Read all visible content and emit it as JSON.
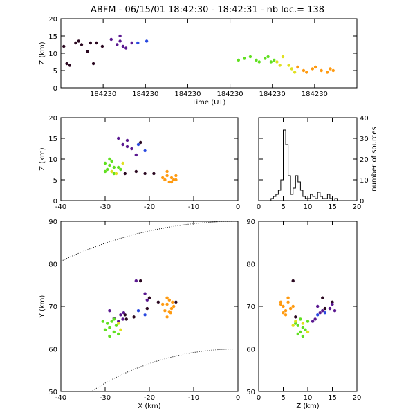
{
  "title": "ABFM - 06/15/01 18:42:30 - 18:42:31 - nb loc.=    138",
  "colors": {
    "early": "#2a0820",
    "purple": "#5a1890",
    "blue": "#2848e0",
    "green": "#60e020",
    "yellow": "#e0e020",
    "orange": "#ff9a10"
  },
  "chart_data": [
    {
      "id": "time_height",
      "type": "scatter",
      "xlabel": "Time (UT)",
      "ylabel": "Z (km)",
      "x_ticklabels": [
        "184230",
        "184230",
        "184230",
        "184230",
        "184230",
        "184230"
      ],
      "ylim": [
        0,
        20
      ],
      "y_ticks": [
        0,
        5,
        10,
        15,
        20
      ],
      "xlim": [
        0,
        1
      ],
      "series": [
        {
          "color": "#2a0820",
          "points": [
            [
              0.01,
              12
            ],
            [
              0.02,
              7
            ],
            [
              0.03,
              6.5
            ],
            [
              0.05,
              13
            ],
            [
              0.06,
              13.5
            ],
            [
              0.07,
              12.5
            ],
            [
              0.09,
              10.5
            ],
            [
              0.1,
              13
            ],
            [
              0.11,
              7
            ],
            [
              0.12,
              13
            ],
            [
              0.14,
              12
            ]
          ]
        },
        {
          "color": "#5a1890",
          "points": [
            [
              0.17,
              14
            ],
            [
              0.19,
              12.5
            ],
            [
              0.2,
              15
            ],
            [
              0.21,
              12
            ],
            [
              0.22,
              11.5
            ],
            [
              0.2,
              13.5
            ],
            [
              0.24,
              13
            ]
          ]
        },
        {
          "color": "#2848e0",
          "points": [
            [
              0.26,
              13
            ],
            [
              0.29,
              13.5
            ]
          ]
        },
        {
          "color": "#60e020",
          "points": [
            [
              0.6,
              8
            ],
            [
              0.62,
              8.5
            ],
            [
              0.64,
              9
            ],
            [
              0.66,
              8
            ],
            [
              0.67,
              7.5
            ],
            [
              0.69,
              8.5
            ],
            [
              0.7,
              9
            ],
            [
              0.71,
              7.5
            ],
            [
              0.72,
              8
            ]
          ]
        },
        {
          "color": "#e0e020",
          "points": [
            [
              0.73,
              7.5
            ],
            [
              0.75,
              9
            ],
            [
              0.74,
              6.5
            ],
            [
              0.77,
              6.5
            ],
            [
              0.78,
              5.5
            ],
            [
              0.79,
              4.5
            ]
          ]
        },
        {
          "color": "#ff9a10",
          "points": [
            [
              0.8,
              6
            ],
            [
              0.82,
              5
            ],
            [
              0.83,
              4.5
            ],
            [
              0.85,
              5.5
            ],
            [
              0.86,
              6
            ],
            [
              0.88,
              5
            ],
            [
              0.9,
              4.5
            ],
            [
              0.91,
              5.5
            ],
            [
              0.92,
              5
            ]
          ]
        }
      ]
    },
    {
      "id": "x_z",
      "type": "scatter",
      "xlabel": "",
      "ylabel": "Z (km)",
      "xlim": [
        -40,
        0
      ],
      "ylim": [
        0,
        20
      ],
      "x_ticks": [
        -40,
        -30,
        -20,
        -10,
        0
      ],
      "y_ticks": [
        0,
        5,
        10,
        15,
        20
      ],
      "series": [
        {
          "color": "#2a0820",
          "points": [
            [
              -22,
              14
            ],
            [
              -23,
              7
            ],
            [
              -21,
              6.5
            ],
            [
              -19,
              6.5
            ],
            [
              -25.5,
              6.5
            ]
          ]
        },
        {
          "color": "#5a1890",
          "points": [
            [
              -27,
              15
            ],
            [
              -26,
              13.5
            ],
            [
              -25,
              13
            ],
            [
              -24,
              12.5
            ],
            [
              -23,
              11
            ],
            [
              -25,
              14.5
            ]
          ]
        },
        {
          "color": "#2848e0",
          "points": [
            [
              -22.5,
              13.5
            ],
            [
              -21,
              12
            ]
          ]
        },
        {
          "color": "#60e020",
          "points": [
            [
              -30,
              9
            ],
            [
              -29,
              8.5
            ],
            [
              -28,
              8
            ],
            [
              -29.5,
              7.5
            ],
            [
              -28.5,
              9.5
            ],
            [
              -27,
              8
            ],
            [
              -30,
              7
            ],
            [
              -28,
              6.5
            ],
            [
              -26.5,
              7.5
            ],
            [
              -29,
              10
            ]
          ]
        },
        {
          "color": "#e0e020",
          "points": [
            [
              -28.5,
              7
            ],
            [
              -27.5,
              6.5
            ],
            [
              -26,
              9
            ]
          ]
        },
        {
          "color": "#ff9a10",
          "points": [
            [
              -16,
              6
            ],
            [
              -15,
              5.5
            ],
            [
              -14.5,
              5
            ],
            [
              -16.5,
              5
            ],
            [
              -15.5,
              4.5
            ],
            [
              -14,
              6
            ],
            [
              -16,
              7
            ],
            [
              -15,
              4.5
            ],
            [
              -17,
              5.5
            ],
            [
              -14,
              5
            ]
          ]
        }
      ]
    },
    {
      "id": "z_histogram",
      "type": "bar",
      "xlabel": "",
      "ylabel": "number of sources",
      "xlim": [
        0,
        20
      ],
      "ylim": [
        0,
        40
      ],
      "x_ticks": [
        0,
        5,
        10,
        15,
        20
      ],
      "y_ticks": [
        0,
        10,
        20,
        30,
        40
      ],
      "bin_width": 0.5,
      "bin_starts": [
        2,
        2.5,
        3,
        3.5,
        4,
        4.5,
        5,
        5.5,
        6,
        6.5,
        7,
        7.5,
        8,
        8.5,
        9,
        9.5,
        10,
        10.5,
        11,
        11.5,
        12,
        12.5,
        13,
        13.5,
        14,
        14.5,
        15,
        15.5,
        16
      ],
      "values": [
        0,
        1,
        2,
        3,
        5,
        10,
        34,
        27,
        12,
        3,
        6,
        12,
        9,
        5,
        2,
        1,
        1,
        3,
        2,
        1,
        4,
        2,
        1,
        1,
        3,
        1,
        0,
        1,
        0
      ]
    },
    {
      "id": "x_y",
      "type": "scatter",
      "xlabel": "X (km)",
      "ylabel": "Y (km)",
      "xlim": [
        -40,
        0
      ],
      "ylim": [
        50,
        90
      ],
      "x_ticks": [
        -40,
        -30,
        -20,
        -10,
        0
      ],
      "y_ticks": [
        50,
        60,
        70,
        80,
        90
      ],
      "range_arcs": [
        {
          "center": [
            0,
            0
          ],
          "radius": 90
        },
        {
          "center": [
            0,
            0
          ],
          "radius": 60
        }
      ],
      "series": [
        {
          "color": "#2a0820",
          "points": [
            [
              -22,
              76
            ],
            [
              -20,
              72
            ],
            [
              -18,
              71
            ],
            [
              -20.5,
              69.5
            ],
            [
              -14,
              71
            ],
            [
              -25.5,
              68
            ],
            [
              -25.2,
              67
            ],
            [
              -23.5,
              67.5
            ]
          ]
        },
        {
          "color": "#5a1890",
          "points": [
            [
              -27,
              66.5
            ],
            [
              -26.5,
              68
            ],
            [
              -26,
              67
            ],
            [
              -25.8,
              68.5
            ],
            [
              -29,
              69
            ],
            [
              -28,
              67.2
            ],
            [
              -23,
              76
            ],
            [
              -21,
              73
            ],
            [
              -20.5,
              71.5
            ]
          ]
        },
        {
          "color": "#2848e0",
          "points": [
            [
              -22.5,
              69
            ],
            [
              -21,
              68
            ]
          ]
        },
        {
          "color": "#60e020",
          "points": [
            [
              -29.5,
              66
            ],
            [
              -29,
              65
            ],
            [
              -28,
              64
            ],
            [
              -30,
              64.5
            ],
            [
              -28.5,
              66.5
            ],
            [
              -27,
              63.5
            ],
            [
              -30.5,
              66.5
            ],
            [
              -28,
              67
            ],
            [
              -27.5,
              65.5
            ],
            [
              -29,
              63
            ]
          ]
        },
        {
          "color": "#e0e020",
          "points": [
            [
              -27,
              66
            ],
            [
              -26.5,
              64.5
            ]
          ]
        },
        {
          "color": "#ff9a10",
          "points": [
            [
              -16,
              70.5
            ],
            [
              -15.5,
              71.5
            ],
            [
              -15,
              69.5
            ],
            [
              -16.5,
              69
            ],
            [
              -14.5,
              70
            ],
            [
              -16,
              72
            ],
            [
              -15.2,
              68.5
            ],
            [
              -17,
              70.5
            ],
            [
              -14.8,
              71
            ],
            [
              -16,
              67.5
            ],
            [
              -15.5,
              68.8
            ]
          ]
        }
      ]
    },
    {
      "id": "z_y",
      "type": "scatter",
      "xlabel": "Z (km)",
      "ylabel": "",
      "xlim": [
        0,
        20
      ],
      "ylim": [
        50,
        90
      ],
      "x_ticks": [
        0,
        5,
        10,
        15,
        20
      ],
      "y_ticks": [
        50,
        60,
        70,
        80,
        90
      ],
      "series": [
        {
          "color": "#2a0820",
          "points": [
            [
              7,
              76
            ],
            [
              13,
              72
            ],
            [
              15,
              71
            ],
            [
              7.5,
              67.5
            ],
            [
              13.5,
              69.5
            ]
          ]
        },
        {
          "color": "#5a1890",
          "points": [
            [
              12,
              70
            ],
            [
              13,
              69
            ],
            [
              12.5,
              68.5
            ],
            [
              11.5,
              67
            ],
            [
              11,
              66.5
            ],
            [
              15,
              70.5
            ],
            [
              14.5,
              69.5
            ],
            [
              15.5,
              69
            ]
          ]
        },
        {
          "color": "#2848e0",
          "points": [
            [
              12,
              68
            ],
            [
              13.5,
              68.5
            ]
          ]
        },
        {
          "color": "#60e020",
          "points": [
            [
              9,
              65
            ],
            [
              8.5,
              64
            ],
            [
              8,
              65.5
            ],
            [
              9.5,
              64.5
            ],
            [
              8,
              63.5
            ],
            [
              9,
              63
            ],
            [
              7.5,
              66
            ],
            [
              10,
              66.5
            ],
            [
              8.5,
              67
            ]
          ]
        },
        {
          "color": "#e0e020",
          "points": [
            [
              7.5,
              66.5
            ],
            [
              9,
              66
            ],
            [
              10,
              64
            ],
            [
              7,
              65.5
            ]
          ]
        },
        {
          "color": "#ff9a10",
          "points": [
            [
              5,
              70
            ],
            [
              6,
              71
            ],
            [
              5.5,
              69
            ],
            [
              4.5,
              70.5
            ],
            [
              6.5,
              69.5
            ],
            [
              5,
              68.5
            ],
            [
              6,
              72
            ],
            [
              5.5,
              68
            ],
            [
              4.5,
              71
            ],
            [
              7,
              70
            ]
          ]
        }
      ]
    }
  ]
}
